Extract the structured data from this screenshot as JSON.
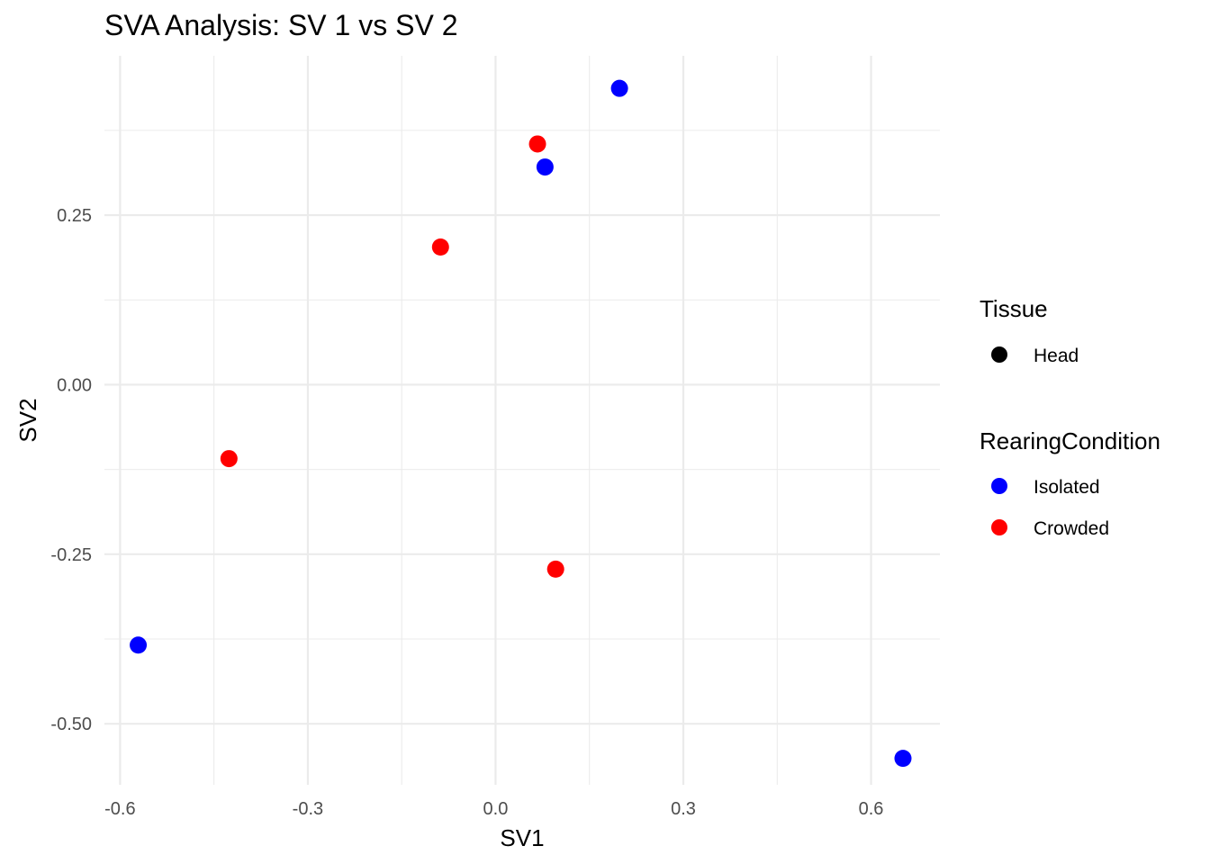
{
  "chart_data": {
    "type": "scatter",
    "title": "SVA Analysis: SV 1  vs SV 2",
    "xlabel": "SV1",
    "ylabel": "SV2",
    "xlim": [
      -0.625,
      0.71
    ],
    "ylim": [
      -0.59,
      0.485
    ],
    "x_ticks": [
      -0.6,
      -0.3,
      0.0,
      0.3,
      0.6
    ],
    "x_tick_labels": [
      "-0.6",
      "-0.3",
      "0.0",
      "0.3",
      "0.6"
    ],
    "y_ticks": [
      -0.5,
      -0.25,
      0.0,
      0.25
    ],
    "y_tick_labels": [
      "-0.50",
      "-0.25",
      "0.00",
      "0.25"
    ],
    "grid": true,
    "legend_position": "right",
    "legends": [
      {
        "title": "Tissue",
        "items": [
          {
            "label": "Head",
            "color": "#000000"
          }
        ]
      },
      {
        "title": "RearingCondition",
        "items": [
          {
            "label": "Isolated",
            "color": "#0000ff"
          },
          {
            "label": "Crowded",
            "color": "#ff0000"
          }
        ]
      }
    ],
    "series": [
      {
        "name": "Isolated",
        "color": "#0000ff",
        "points": [
          {
            "x": 0.198,
            "y": 0.437
          },
          {
            "x": 0.079,
            "y": 0.321
          },
          {
            "x": -0.571,
            "y": -0.384
          },
          {
            "x": 0.651,
            "y": -0.551
          }
        ]
      },
      {
        "name": "Crowded",
        "color": "#ff0000",
        "points": [
          {
            "x": 0.067,
            "y": 0.355
          },
          {
            "x": -0.088,
            "y": 0.203
          },
          {
            "x": -0.426,
            "y": -0.109
          },
          {
            "x": 0.096,
            "y": -0.272
          }
        ]
      }
    ]
  }
}
